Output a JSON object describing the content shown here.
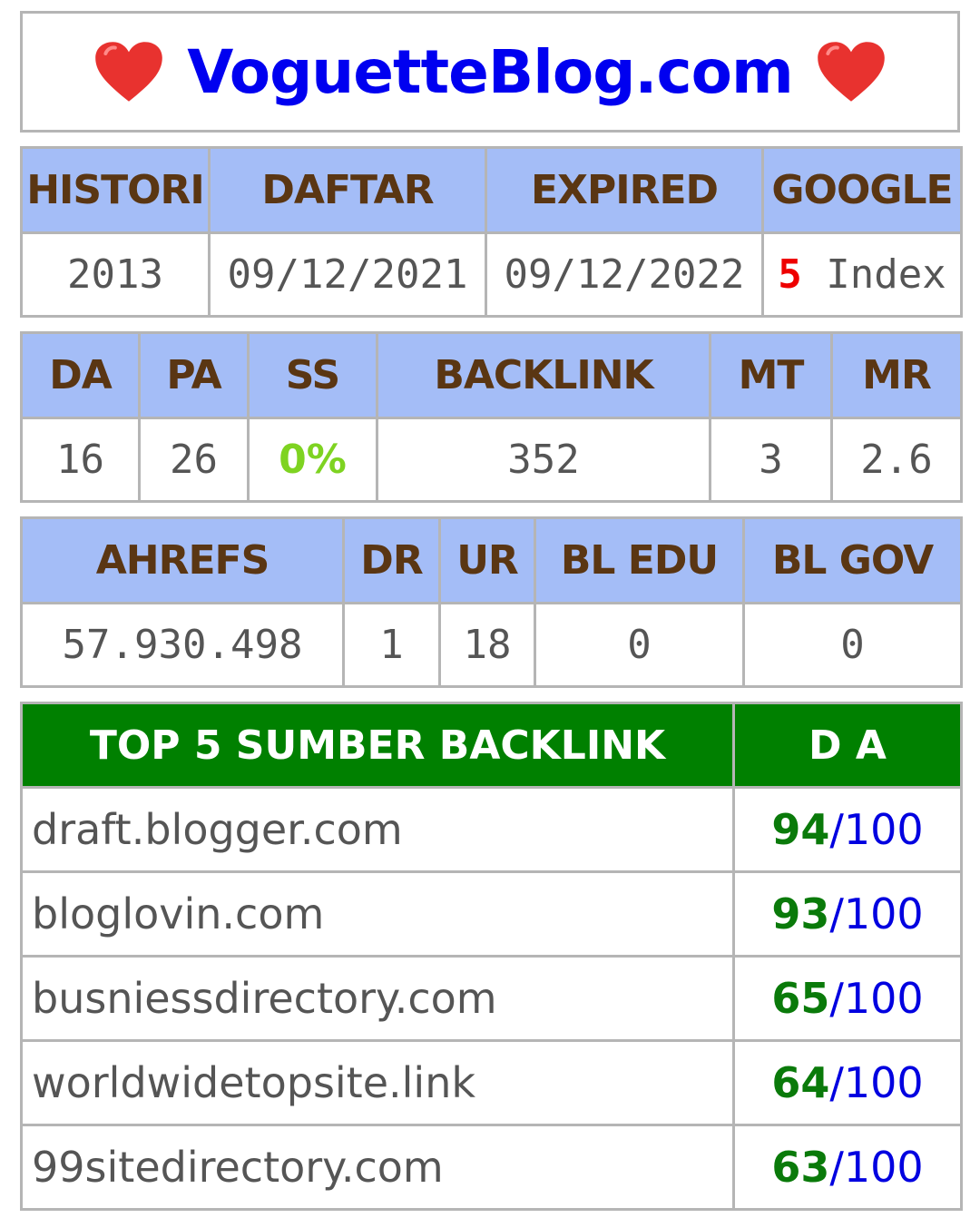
{
  "header": {
    "title": "VoguetteBlog.com",
    "left_icon": "heart-icon",
    "right_icon": "heart-icon",
    "heart_color": "#e8322f"
  },
  "domain_info": {
    "headers": [
      "HISTORI",
      "DAFTAR",
      "EXPIRED",
      "GOOGLE"
    ],
    "historia": "2013",
    "daftar": "09/12/2021",
    "expired": "09/12/2022",
    "google_count": "5",
    "google_suffix": " Index"
  },
  "moz": {
    "headers": [
      "DA",
      "PA",
      "SS",
      "BACKLINK",
      "MT",
      "MR"
    ],
    "values": [
      "16",
      "26",
      "0%",
      "352",
      "3",
      "2.6"
    ]
  },
  "ahrefs": {
    "headers": [
      "AHREFS",
      "DR",
      "UR",
      "BL EDU",
      "BL GOV"
    ],
    "values": [
      "57.930.498",
      "1",
      "18",
      "0",
      "0"
    ]
  },
  "backlinks": {
    "header_source": "TOP 5 SUMBER BACKLINK",
    "header_da": "D A",
    "separator": "/",
    "max": "100",
    "rows": [
      {
        "site": "draft.blogger.com",
        "da": "94"
      },
      {
        "site": "bloglovin.com",
        "da": "93"
      },
      {
        "site": "busniessdirectory.com",
        "da": "65"
      },
      {
        "site": "worldwidetopsite.link",
        "da": "64"
      },
      {
        "site": "99sitedirectory.com",
        "da": "63"
      }
    ]
  },
  "colors": {
    "header_blue": "#a4bdf7",
    "header_text_brown": "#5a3613",
    "title_blue": "#0000f0",
    "backlink_header_green": "#008000",
    "da_green": "#0a7a0a",
    "google_red": "#ee0000",
    "ss_green": "#7ed321"
  }
}
